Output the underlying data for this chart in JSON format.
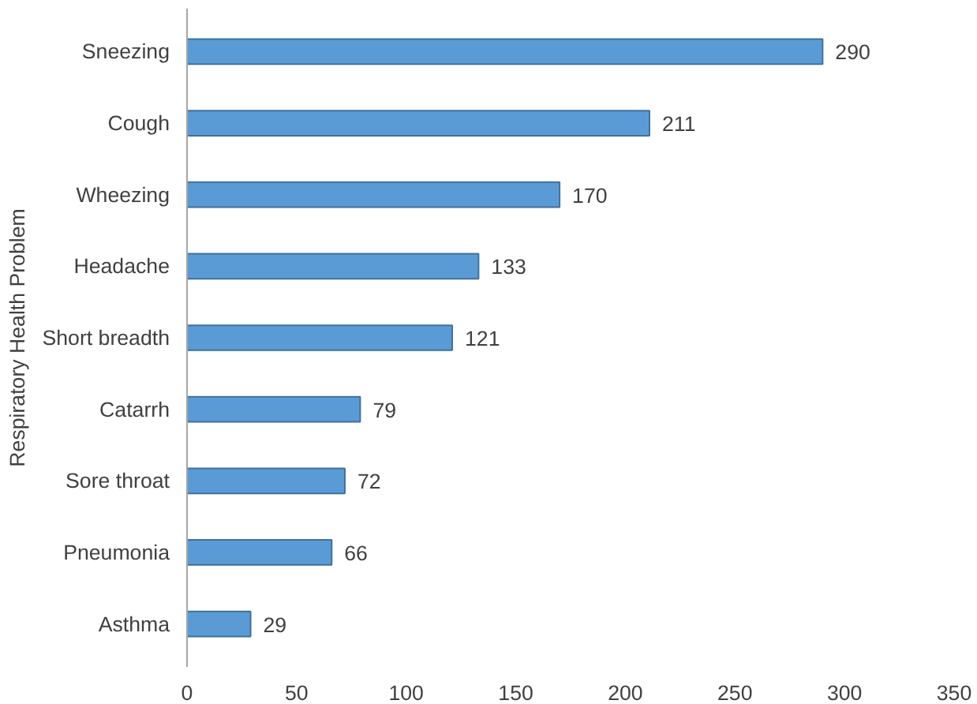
{
  "chart_data": {
    "type": "bar",
    "orientation": "horizontal",
    "ylabel": "Respiratory Health Problem",
    "categories": [
      "Sneezing",
      "Cough",
      "Wheezing",
      "Headache",
      "Short breadth",
      "Catarrh",
      "Sore throat",
      "Pneumonia",
      "Asthma"
    ],
    "values": [
      290,
      211,
      170,
      133,
      121,
      79,
      72,
      66,
      29
    ],
    "color": "#5b9bd5",
    "xlim": [
      0,
      350
    ],
    "xticks": [
      0,
      50,
      100,
      150,
      200,
      250,
      300,
      350
    ],
    "grid": false,
    "data_labels": true
  }
}
